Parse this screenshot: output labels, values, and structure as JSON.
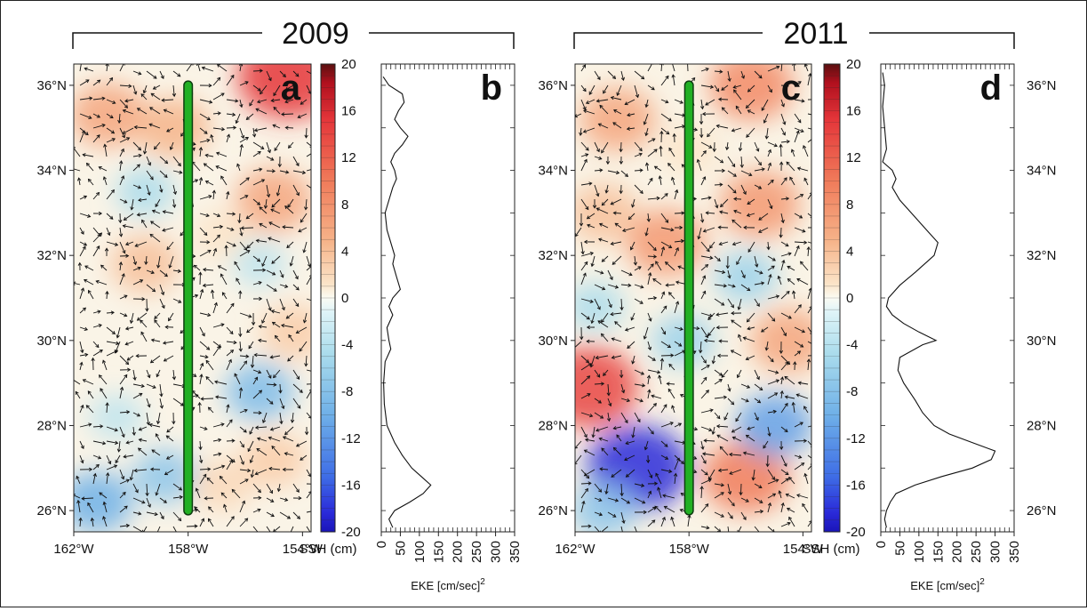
{
  "chart_data": [
    {
      "panel": "a",
      "type": "heatmap",
      "year": "2009",
      "label": "a",
      "xlabel": "",
      "ylabel": "",
      "x_ticks": [
        "162°W",
        "158°W",
        "154°W"
      ],
      "y_ticks": [
        "26°N",
        "28°N",
        "30°N",
        "32°N",
        "34°N",
        "36°N"
      ],
      "xlim": [
        -162,
        -153.7
      ],
      "ylim": [
        25.5,
        36.5
      ],
      "transect": {
        "lon": -158,
        "lat_range": [
          26,
          36
        ],
        "color": "#22b024"
      },
      "colorbar": {
        "label": "SSH (cm)",
        "range": [
          -20,
          20
        ],
        "ticks": [
          "20",
          "16",
          "12",
          "8",
          "4",
          "0",
          "-4",
          "-8",
          "-12",
          "-16",
          "-20"
        ]
      },
      "ssh_features": [
        {
          "lon": -154.5,
          "lat": 36.2,
          "ssh": 16
        },
        {
          "lon": -160.8,
          "lat": 35.3,
          "ssh": 9
        },
        {
          "lon": -158.5,
          "lat": 35.0,
          "ssh": 8
        },
        {
          "lon": -155.0,
          "lat": 33.3,
          "ssh": 9
        },
        {
          "lon": -159.5,
          "lat": 31.8,
          "ssh": 7
        },
        {
          "lon": -154.3,
          "lat": 30.2,
          "ssh": 6
        },
        {
          "lon": -156.8,
          "lat": 32.5,
          "ssh": 4
        },
        {
          "lon": -159.5,
          "lat": 33.5,
          "ssh": -4
        },
        {
          "lon": -155.5,
          "lat": 31.8,
          "ssh": -3
        },
        {
          "lon": -155.5,
          "lat": 28.8,
          "ssh": -7
        },
        {
          "lon": -161.2,
          "lat": 26.2,
          "ssh": -8
        },
        {
          "lon": -158.8,
          "lat": 26.8,
          "ssh": -6
        },
        {
          "lon": -160.5,
          "lat": 28.2,
          "ssh": -3
        },
        {
          "lon": -155.0,
          "lat": 27.2,
          "ssh": 6
        },
        {
          "lon": -156.8,
          "lat": 26.6,
          "ssh": 5
        }
      ]
    },
    {
      "panel": "b",
      "type": "line",
      "label": "b",
      "xlabel": "EKE [cm/sec]",
      "xlabel_sup": "2",
      "x_ticks": [
        "0",
        "50",
        "100",
        "150",
        "200",
        "250",
        "300",
        "350"
      ],
      "xlim": [
        0,
        350
      ],
      "ylim": [
        25.5,
        36.5
      ],
      "series": [
        {
          "lat": [
            25.6,
            25.8,
            26.0,
            26.2,
            26.4,
            26.6,
            26.8,
            27.0,
            27.3,
            27.6,
            28.0,
            28.5,
            29.0,
            29.5,
            29.8,
            30.0,
            30.3,
            30.6,
            30.8,
            31.0,
            31.2,
            31.5,
            31.8,
            32.0,
            32.3,
            32.6,
            33.0,
            33.3,
            33.6,
            33.8,
            34.0,
            34.2,
            34.4,
            34.6,
            34.8,
            35.0,
            35.2,
            35.4,
            35.6,
            35.8,
            36.0,
            36.2
          ],
          "eke": [
            30,
            20,
            35,
            75,
            110,
            130,
            105,
            80,
            55,
            35,
            15,
            8,
            6,
            10,
            25,
            20,
            15,
            30,
            20,
            30,
            50,
            40,
            30,
            35,
            25,
            15,
            10,
            20,
            30,
            40,
            35,
            25,
            35,
            55,
            70,
            50,
            35,
            45,
            60,
            55,
            20,
            5
          ]
        }
      ]
    },
    {
      "panel": "c",
      "type": "heatmap",
      "year": "2011",
      "label": "c",
      "xlabel": "",
      "ylabel": "",
      "x_ticks": [
        "162°W",
        "158°W",
        "154°W"
      ],
      "y_ticks": [
        "26°N",
        "28°N",
        "30°N",
        "32°N",
        "34°N",
        "36°N"
      ],
      "xlim": [
        -162,
        -153.7
      ],
      "ylim": [
        25.5,
        36.5
      ],
      "transect": {
        "lon": -158,
        "lat_range": [
          26,
          36
        ],
        "color": "#22b024"
      },
      "colorbar": {
        "label": "SSH (cm)",
        "range": [
          -20,
          20
        ],
        "ticks": [
          "20",
          "16",
          "12",
          "8",
          "4",
          "0",
          "-4",
          "-8",
          "-12",
          "-16",
          "-20"
        ]
      },
      "ssh_features": [
        {
          "lon": -161.5,
          "lat": 28.9,
          "ssh": 15
        },
        {
          "lon": -156.0,
          "lat": 26.8,
          "ssh": 12
        },
        {
          "lon": -155.8,
          "lat": 36.0,
          "ssh": 11
        },
        {
          "lon": -160.5,
          "lat": 35.2,
          "ssh": 9
        },
        {
          "lon": -158.8,
          "lat": 32.3,
          "ssh": 10
        },
        {
          "lon": -155.5,
          "lat": 33.2,
          "ssh": 10
        },
        {
          "lon": -161.0,
          "lat": 33.0,
          "ssh": 7
        },
        {
          "lon": -154.5,
          "lat": 30.0,
          "ssh": 9
        },
        {
          "lon": -158.0,
          "lat": 34.5,
          "ssh": 4
        },
        {
          "lon": -159.8,
          "lat": 27.0,
          "ssh": -16
        },
        {
          "lon": -155.0,
          "lat": 28.0,
          "ssh": -9
        },
        {
          "lon": -156.0,
          "lat": 31.5,
          "ssh": -5
        },
        {
          "lon": -158.2,
          "lat": 30.0,
          "ssh": -5
        },
        {
          "lon": -161.3,
          "lat": 30.8,
          "ssh": -4
        },
        {
          "lon": -161.0,
          "lat": 26.0,
          "ssh": -6
        }
      ]
    },
    {
      "panel": "d",
      "type": "line",
      "label": "d",
      "xlabel": "EKE [cm/sec]",
      "xlabel_sup": "2",
      "x_ticks": [
        "0",
        "50",
        "100",
        "150",
        "200",
        "250",
        "300",
        "350"
      ],
      "xlim": [
        0,
        350
      ],
      "ylim": [
        25.5,
        36.5
      ],
      "right_y_ticks": [
        "26°N",
        "28°N",
        "30°N",
        "32°N",
        "34°N",
        "36°N"
      ],
      "series": [
        {
          "lat": [
            25.6,
            25.8,
            26.0,
            26.2,
            26.4,
            26.6,
            26.8,
            27.0,
            27.2,
            27.4,
            27.6,
            27.8,
            28.0,
            28.3,
            28.6,
            29.0,
            29.3,
            29.6,
            29.9,
            30.0,
            30.2,
            30.4,
            30.6,
            30.8,
            31.0,
            31.3,
            31.6,
            32.0,
            32.3,
            32.6,
            33.0,
            33.3,
            33.6,
            33.8,
            34.0,
            34.2,
            34.5,
            35.0,
            35.5,
            36.0,
            36.3
          ],
          "eke": [
            15,
            10,
            15,
            25,
            40,
            90,
            160,
            240,
            290,
            300,
            240,
            180,
            140,
            110,
            90,
            60,
            45,
            50,
            110,
            145,
            100,
            60,
            30,
            15,
            20,
            50,
            90,
            140,
            150,
            120,
            80,
            50,
            30,
            40,
            30,
            5,
            15,
            10,
            5,
            10,
            5
          ]
        }
      ]
    }
  ]
}
